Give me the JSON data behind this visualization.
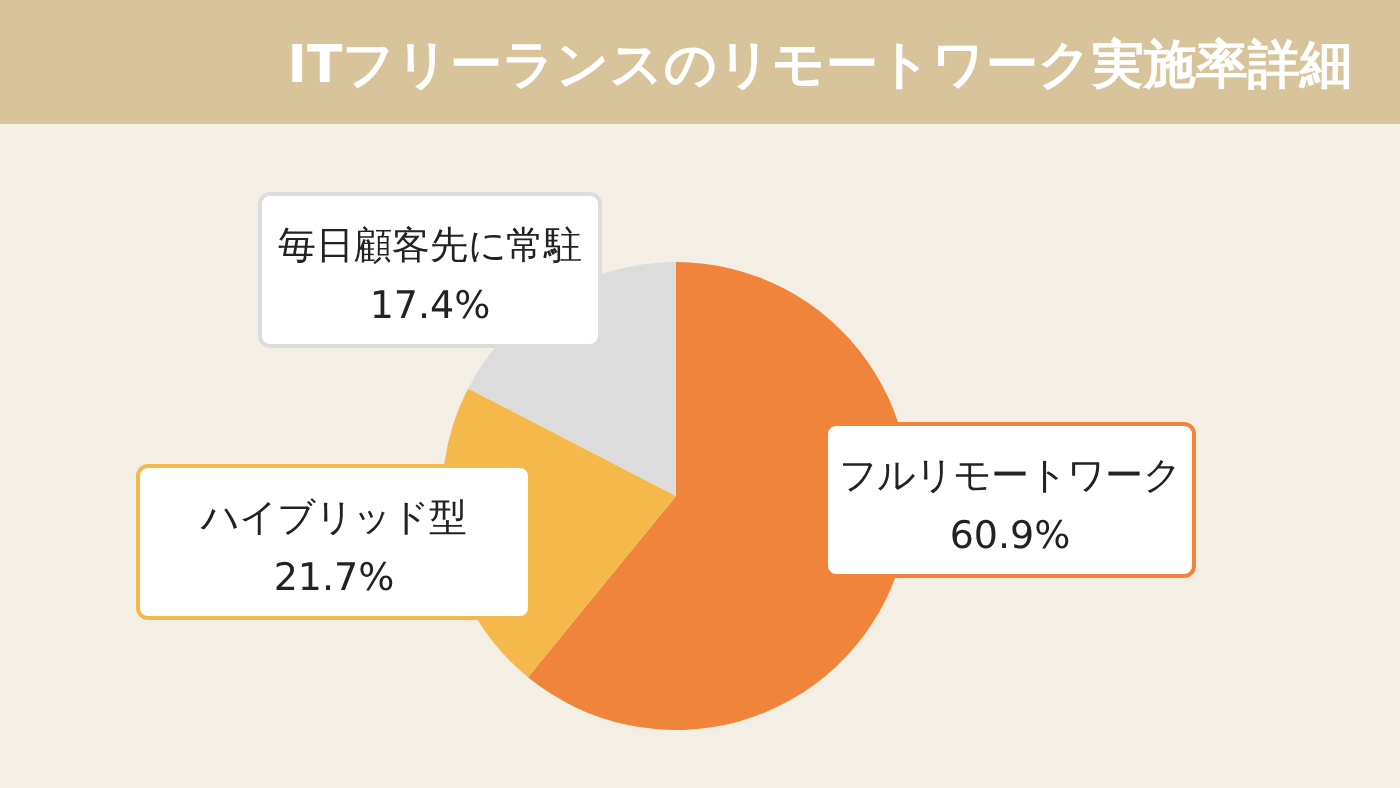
{
  "chart_data": {
    "type": "pie",
    "title": "ITフリーランスのリモートワーク実施率詳細",
    "categories": [
      "フルリモートワーク",
      "ハイブリッド型",
      "毎日顧客先に常駐"
    ],
    "values": [
      60.9,
      21.7,
      17.4
    ],
    "colors": [
      "#f0843a",
      "#f5b84b",
      "#dcdcdc"
    ],
    "value_labels": [
      "60.9%",
      "21.7%",
      "17.4%"
    ]
  }
}
